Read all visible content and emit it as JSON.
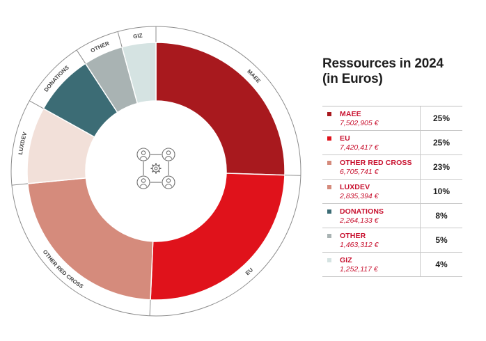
{
  "legend_title": {
    "line1": "Ressources in 2024",
    "line2": "(in Euros)"
  },
  "chart_data": {
    "type": "pie",
    "title": "Ressources in 2024 (in Euros)",
    "categories": [
      "MAEE",
      "EU",
      "OTHER RED CROSS",
      "LUXDEV",
      "DONATIONS",
      "OTHER",
      "GIZ"
    ],
    "series": [
      {
        "values": [
          7502905,
          7420417,
          6705741,
          2835394,
          2264133,
          1463312,
          1252117
        ]
      }
    ],
    "percent_labels": [
      "25%",
      "25%",
      "23%",
      "10%",
      "8%",
      "5%",
      "4%"
    ],
    "amount_labels": [
      "7,502,905 €",
      "7,420,417 €",
      "6,705,741 €",
      "2,835,394 €",
      "2,264,133 €",
      "1,463,312 €",
      "1,252,117  €"
    ],
    "colors": [
      "#a8191e",
      "#e0121b",
      "#d58b7c",
      "#f2e0d9",
      "#3c6c75",
      "#a9b3b3",
      "#d5e3e2"
    ],
    "donut": true,
    "legend_position": "right"
  },
  "legend": [
    {
      "name": "MAEE",
      "amount": "7,502,905 €",
      "pct": "25%"
    },
    {
      "name": "EU",
      "amount": "7,420,417 €",
      "pct": "25%"
    },
    {
      "name": "OTHER RED CROSS",
      "amount": "6,705,741 €",
      "pct": "23%"
    },
    {
      "name": "LUXDEV",
      "amount": "2,835,394 €",
      "pct": "10%"
    },
    {
      "name": "DONATIONS",
      "amount": "2,264,133 €",
      "pct": "8%"
    },
    {
      "name": "OTHER",
      "amount": "1,463,312 €",
      "pct": "5%"
    },
    {
      "name": "GIZ",
      "amount": "1,252,117  €",
      "pct": "4%"
    }
  ],
  "center_icon": "network-people-gear-icon"
}
